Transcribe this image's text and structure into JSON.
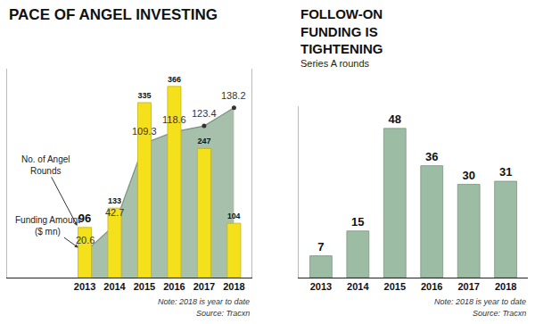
{
  "chart_data": [
    {
      "type": "bar",
      "title": "PACE OF ANGEL INVESTING",
      "categories": [
        "2013",
        "2014",
        "2015",
        "2016",
        "2017",
        "2018"
      ],
      "series": [
        {
          "name": "Funding Amount ($ mn)",
          "type": "area",
          "color": "#a7c0ab",
          "marker": "circle",
          "values": [
            20.6,
            42.7,
            109.3,
            118.6,
            123.4,
            138.2
          ]
        },
        {
          "name": "No. of Angel Rounds",
          "type": "bar",
          "axis": "y2",
          "color": "#f4e11c",
          "values": [
            96,
            133,
            335,
            366,
            247,
            104
          ]
        }
      ],
      "ylim": [
        0,
        170
      ],
      "yticks": [],
      "y2lim": [
        0,
        400
      ],
      "y2ticks": [],
      "tick_labels": "x",
      "data_labels": true,
      "note": "Note: 2018 is year to date",
      "source": "Source: Tracxn"
    },
    {
      "type": "bar",
      "title": "FOLLOW-ON FUNDING IS TIGHTENING",
      "subtitle": "Series A rounds",
      "categories": [
        "2013",
        "2014",
        "2015",
        "2016",
        "2017",
        "2018"
      ],
      "values": [
        7,
        15,
        48,
        36,
        30,
        31
      ],
      "color": "#9cbca4",
      "ylim": [
        0,
        55
      ],
      "yticks": [],
      "tick_labels": "x",
      "data_labels": true,
      "note": "Note: 2018 is year to date",
      "source": "Source: Tracxn"
    }
  ]
}
